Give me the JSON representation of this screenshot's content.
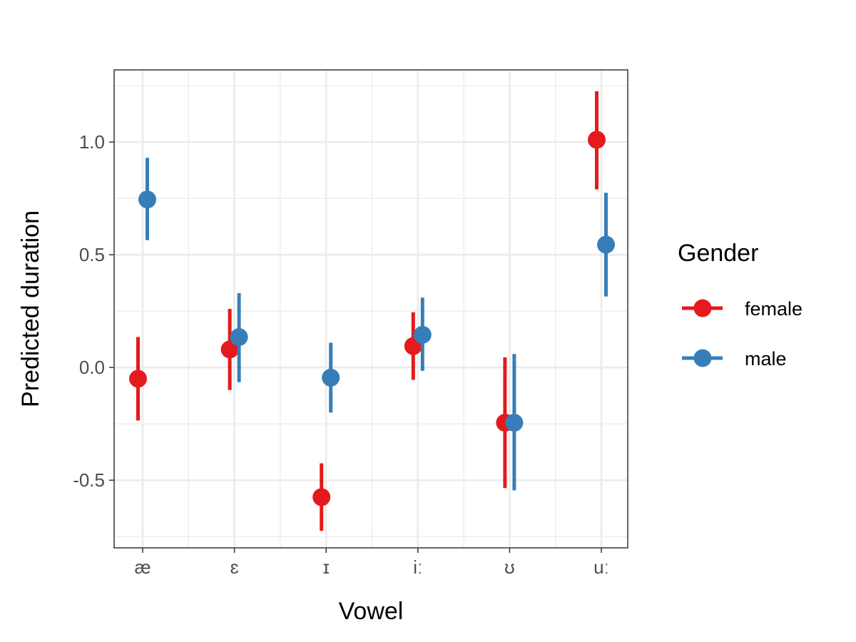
{
  "chart_data": {
    "type": "scatter",
    "subtype": "pointrange",
    "xlabel": "Vowel",
    "ylabel": "Predicted duration",
    "categories": [
      "æ",
      "ɛ",
      "ɪ",
      "iː",
      "ʊ",
      "uː"
    ],
    "yticks": [
      "-0.5",
      "0.0",
      "0.5",
      "1.0"
    ],
    "ylim": [
      -0.8,
      1.32
    ],
    "grid": true,
    "legend": {
      "title": "Gender",
      "position": "right"
    },
    "series": [
      {
        "name": "female",
        "color": "#e41a1c",
        "values": [
          -0.05,
          0.08,
          -0.575,
          0.095,
          -0.245,
          1.01
        ],
        "lower": [
          -0.235,
          -0.1,
          -0.725,
          -0.055,
          -0.535,
          0.79
        ],
        "upper": [
          0.135,
          0.26,
          -0.425,
          0.245,
          0.045,
          1.225
        ]
      },
      {
        "name": "male",
        "color": "#377eb8",
        "values": [
          0.745,
          0.135,
          -0.045,
          0.145,
          -0.245,
          0.545
        ],
        "lower": [
          0.565,
          -0.065,
          -0.2,
          -0.015,
          -0.545,
          0.315
        ],
        "upper": [
          0.93,
          0.33,
          0.11,
          0.31,
          0.06,
          0.775
        ]
      }
    ]
  }
}
